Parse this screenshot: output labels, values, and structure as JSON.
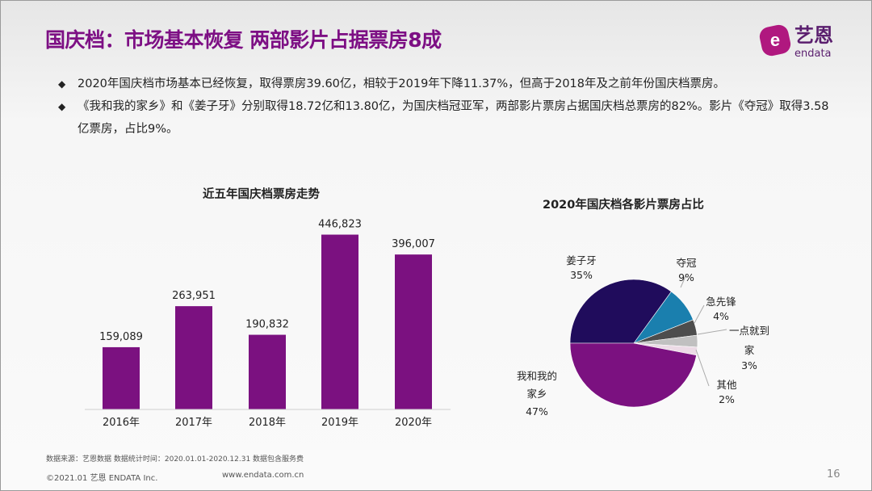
{
  "title": "国庆档：市场基本恢复 两部影片占据票房8成",
  "logo": {
    "cn": "艺恩",
    "en": "endata"
  },
  "bullets": [
    "2020年国庆档市场基本已经恢复，取得票房39.60亿，相较于2019年下降11.37%，但高于2018年及之前年份国庆档票房。",
    "《我和我的家乡》和《姜子牙》分别取得18.72亿和13.80亿，为国庆档冠亚军，两部影片票房占据国庆档总票房的82%。影片《夺冠》取得3.58亿票房，占比9%。"
  ],
  "chart_data": [
    {
      "type": "bar",
      "title": "近五年国庆档票房走势",
      "categories": [
        "2016年",
        "2017年",
        "2018年",
        "2019年",
        "2020年"
      ],
      "values": [
        159089,
        263951,
        190832,
        446823,
        396007
      ],
      "data_labels": [
        "159,089",
        "263,951",
        "190,832",
        "446,823",
        "396,007"
      ],
      "color": "#7b1180",
      "grid": false
    },
    {
      "type": "pie",
      "title": "2020年国庆档各影片票房占比",
      "slices": [
        {
          "label": "姜子牙",
          "value": 35,
          "pct": "35%",
          "color": "#200c5c"
        },
        {
          "label": "夺冠",
          "value": 9,
          "pct": "9%",
          "color": "#1a7fae"
        },
        {
          "label": "急先锋",
          "value": 4,
          "pct": "4%",
          "color": "#4d4d4d"
        },
        {
          "label": "一点就到家",
          "label_lines": [
            "一点就到",
            "家"
          ],
          "value": 3,
          "pct": "3%",
          "color": "#c0c0c0"
        },
        {
          "label": "其他",
          "value": 2,
          "pct": "2%",
          "color": "#ecdbe6"
        },
        {
          "label": "我和我的家乡",
          "label_lines": [
            "我和我的",
            "家乡"
          ],
          "value": 47,
          "pct": "47%",
          "color": "#7b1180"
        }
      ]
    }
  ],
  "source": "数据来源：艺恩数据   数据统计时间：2020.01.01-2020.12.31 数据包含服务费",
  "footer": {
    "copyright": "©2021.01 艺恩 ENDATA Inc.",
    "website": "www.endata.com.cn",
    "page": "16"
  }
}
